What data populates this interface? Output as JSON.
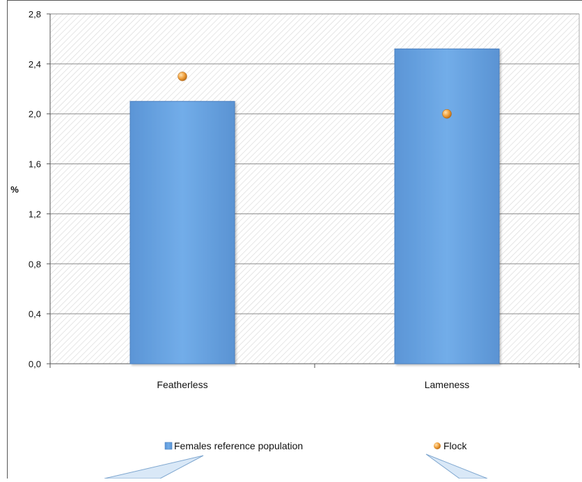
{
  "chart_data": {
    "type": "bar",
    "title": "",
    "ylabel": "%",
    "xlabel": "",
    "ylim": [
      0,
      2.8
    ],
    "yticks": [
      "0,0",
      "0,4",
      "0,8",
      "1,2",
      "1,6",
      "2,0",
      "2,4",
      "2,8"
    ],
    "categories": [
      "Featherless",
      "Lameness"
    ],
    "series": [
      {
        "name": "Females reference population",
        "kind": "bar",
        "values": [
          2.1,
          2.52
        ],
        "color": "#6aa6e6"
      },
      {
        "name": "Flock",
        "kind": "marker",
        "values": [
          2.3,
          2.0
        ],
        "color": "#f0a03c"
      }
    ],
    "grid": true,
    "legend_position": "bottom"
  }
}
